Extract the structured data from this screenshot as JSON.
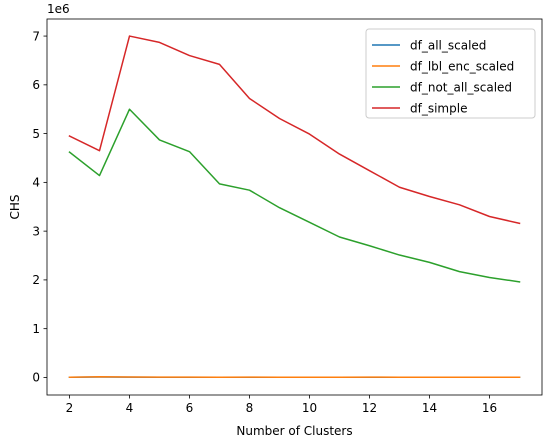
{
  "chart_data": {
    "type": "line",
    "xlabel": "Number of Clusters",
    "ylabel": "CHS",
    "y_offset_label": "1e6",
    "x_ticks": [
      2,
      4,
      6,
      8,
      10,
      12,
      14,
      16
    ],
    "y_ticks": [
      0,
      1,
      2,
      3,
      4,
      5,
      6,
      7
    ],
    "xlim": [
      1.25,
      17.75
    ],
    "ylim": [
      -0.36,
      7.35
    ],
    "grid": false,
    "legend_position": "upper-right",
    "x": [
      2,
      3,
      4,
      5,
      6,
      7,
      8,
      9,
      10,
      11,
      12,
      13,
      14,
      15,
      16,
      17
    ],
    "series": [
      {
        "name": "df_all_scaled",
        "color": "#1f77b4",
        "values": [
          0.004,
          0.008,
          0.006,
          0.005,
          0.005,
          0.004,
          0.004,
          0.004,
          0.004,
          0.004,
          0.004,
          0.004,
          0.004,
          0.004,
          0.004,
          0.004
        ]
      },
      {
        "name": "df_lbl_enc_scaled",
        "color": "#ff7f0e",
        "values": [
          0.005,
          0.014,
          0.008,
          0.006,
          0.006,
          0.005,
          0.006,
          0.005,
          0.005,
          0.005,
          0.006,
          0.005,
          0.005,
          0.005,
          0.005,
          0.005
        ]
      },
      {
        "name": "df_not_all_scaled",
        "color": "#2ca02c",
        "values": [
          4.62,
          4.14,
          5.5,
          4.87,
          4.63,
          3.97,
          3.84,
          3.48,
          3.18,
          2.88,
          2.7,
          2.51,
          2.36,
          2.17,
          2.05,
          1.96
        ]
      },
      {
        "name": "df_simple",
        "color": "#d62728",
        "values": [
          4.95,
          4.65,
          7.0,
          6.87,
          6.6,
          6.42,
          5.72,
          5.31,
          4.99,
          4.58,
          4.24,
          3.9,
          3.71,
          3.54,
          3.3,
          3.16
        ]
      }
    ]
  }
}
